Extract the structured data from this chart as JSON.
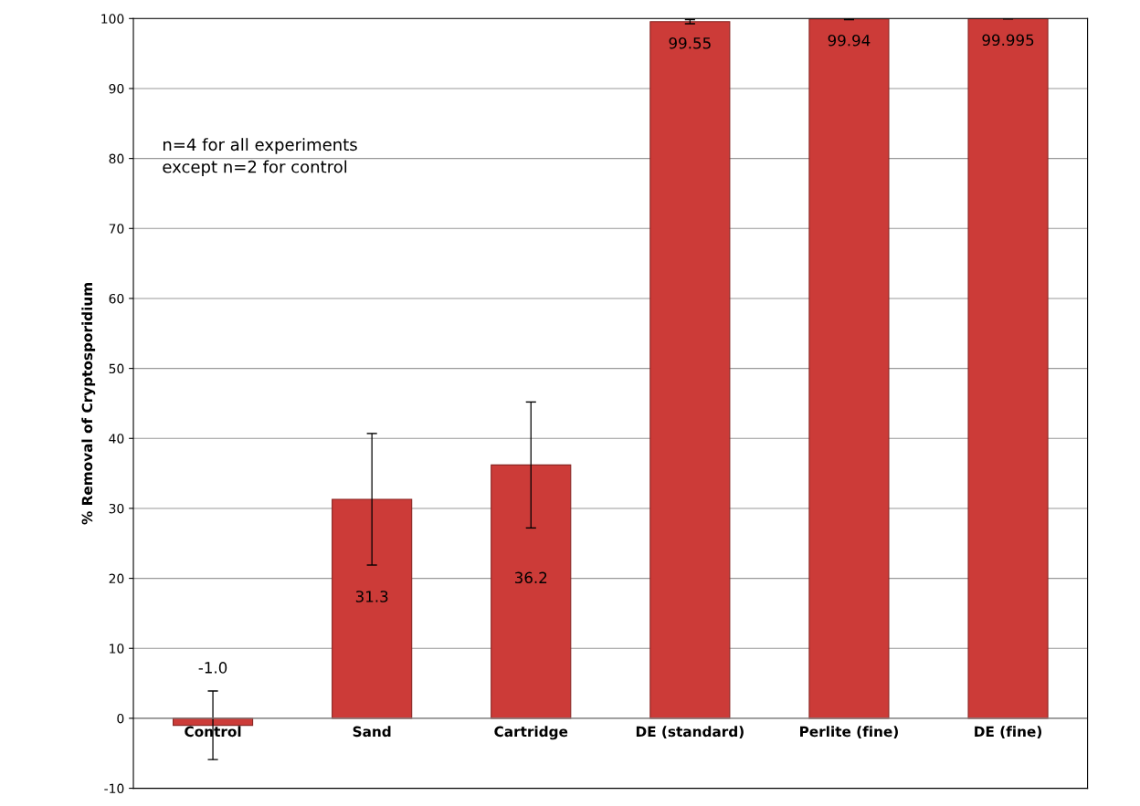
{
  "chart_data": {
    "type": "bar",
    "ylabel": "% Removal of Cryptosporidium",
    "categories": [
      "Control",
      "Sand",
      "Cartridge",
      "DE (standard)",
      "Perlite (fine)",
      "DE (fine)"
    ],
    "values": [
      -1.0,
      31.3,
      36.2,
      99.55,
      99.94,
      99.995
    ],
    "errors": [
      4.9,
      9.4,
      9.0,
      0.3,
      0.1,
      0.05
    ],
    "value_labels": [
      "-1.0",
      "31.3",
      "36.2",
      "99.55",
      "99.94",
      "99.995"
    ],
    "color": "#cc3b38",
    "ylim": [
      -10,
      100
    ],
    "yticks": [
      -10,
      0,
      10,
      20,
      30,
      40,
      50,
      60,
      70,
      80,
      90,
      100
    ],
    "grid": "y",
    "annotations": [
      "n=4 for all experiments\nexcept n=2 for control"
    ]
  }
}
